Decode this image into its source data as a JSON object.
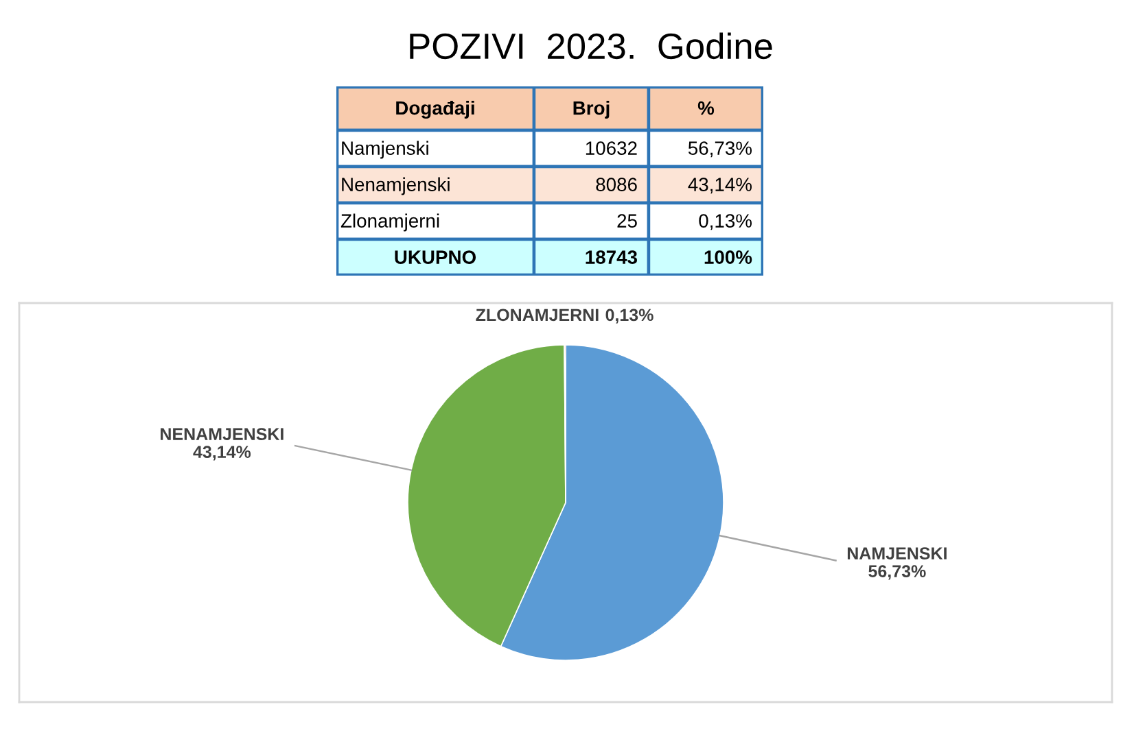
{
  "chart_data": [
    {
      "type": "other",
      "title": "POZIVI  2023.  Godine",
      "xlabel": "Događaji",
      "categories": [
        "Namjenski",
        "Nenamjenski",
        "Zlonamjerni",
        "UKUPNO"
      ],
      "colors": [
        "#ffffff",
        "#fce4d6",
        "#ffffff",
        "#ccffff"
      ],
      "data_labels": true,
      "series": [
        {
          "name": "Broj",
          "colors": [
            "#ffffff",
            "#fce4d6",
            "#ffffff",
            "#ccffff"
          ],
          "values": [
            10632,
            8086,
            25,
            18743
          ]
        },
        {
          "name": "%",
          "colors": [
            "#ffffff",
            "#fce4d6",
            "#ffffff",
            "#ccffff"
          ],
          "values": [
            56.73,
            43.14,
            0.13,
            100
          ],
          "value_labels": [
            "56,73%",
            "43,14%",
            "0,13%",
            "100%"
          ]
        }
      ]
    },
    {
      "type": "pie",
      "categories": [
        "NAMJENSKI",
        "NENAMJENSKI",
        "ZLONAMJERNI"
      ],
      "values": [
        56.73,
        43.14,
        0.13
      ],
      "colors": [
        "#5b9bd5",
        "#70ad47",
        "#c0504d"
      ],
      "value_labels": [
        "56,73%",
        "43,14%",
        "0,13%"
      ]
    }
  ]
}
